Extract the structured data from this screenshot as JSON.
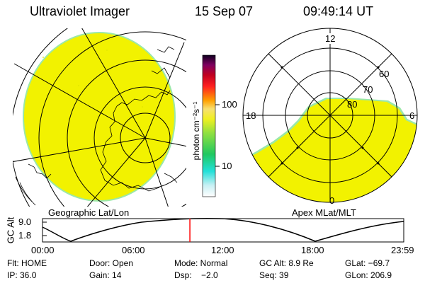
{
  "header": {
    "instrument": "Ultraviolet Imager",
    "date": "15 Sep 07",
    "time": "09:49:14 UT"
  },
  "colors": {
    "aurora_fill": "#f2f200",
    "edge_fill": "#9be8a8",
    "line": "#000000",
    "marker": "#ff0000"
  },
  "colorbar": {
    "unit_label": "photon cm⁻²s⁻¹",
    "ticks": [
      "100",
      "10"
    ],
    "scale": "log"
  },
  "left_panel": {
    "label": "Geographic Lat/Lon"
  },
  "right_panel": {
    "label": "Apex MLat/MLT",
    "mlt_labels": {
      "top": "12",
      "left": "18",
      "right": "6",
      "bottom": "0"
    },
    "lat_labels": [
      "60",
      "70",
      "80"
    ]
  },
  "timeline": {
    "y_label": "GC Alt",
    "y_ticks": [
      "9.0",
      "1.8"
    ],
    "x_ticks": [
      "00:00",
      "06:00",
      "12:00",
      "18:00",
      "23:59"
    ],
    "current_fraction": 0.408
  },
  "info": {
    "row1": {
      "flt": "Flt: HOME",
      "door": "Door: Open",
      "mode": "Mode: Normal",
      "gc_alt": "GC Alt: 8.9 Re",
      "glat": "GLat: −69.7"
    },
    "row2": {
      "ip": "IP: 36.0",
      "gain": "Gain: 14",
      "dsp": "Dsp:    −2.0",
      "seq": "Seq: 39",
      "glon": "GLon: 206.9"
    }
  }
}
